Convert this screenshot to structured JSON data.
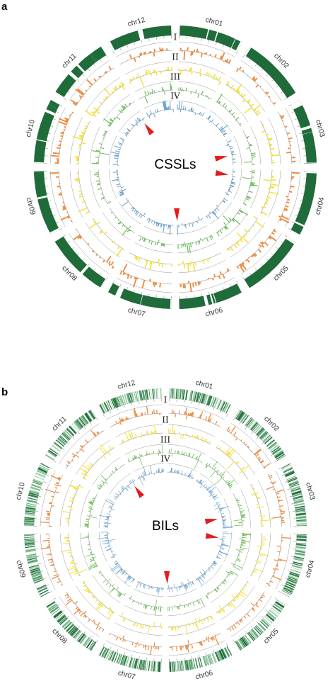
{
  "panels": [
    {
      "letter": "a",
      "center_label": "CSSLs",
      "style": "solid-blocks",
      "arrowheads": 4
    },
    {
      "letter": "b",
      "center_label": "BILs",
      "style": "striped",
      "arrowheads": 4
    }
  ],
  "ring_labels": [
    "I",
    "II",
    "III",
    "IV"
  ],
  "chromosomes": [
    "chr01",
    "chr02",
    "chr03",
    "chr04",
    "chr05",
    "chr06",
    "chr07",
    "chr08",
    "chr09",
    "chr10",
    "chr11",
    "chr12"
  ],
  "colors": {
    "chromosome": "#1f6b3a",
    "chromosome_light": "#7fbf8f",
    "ring1": "#ee8a3c",
    "ring2": "#f2e23a",
    "ring3": "#6fbf5a",
    "ring4": "#5b9ccc",
    "arrow": "#e21d1d",
    "guide": "#9a9a9a"
  }
}
